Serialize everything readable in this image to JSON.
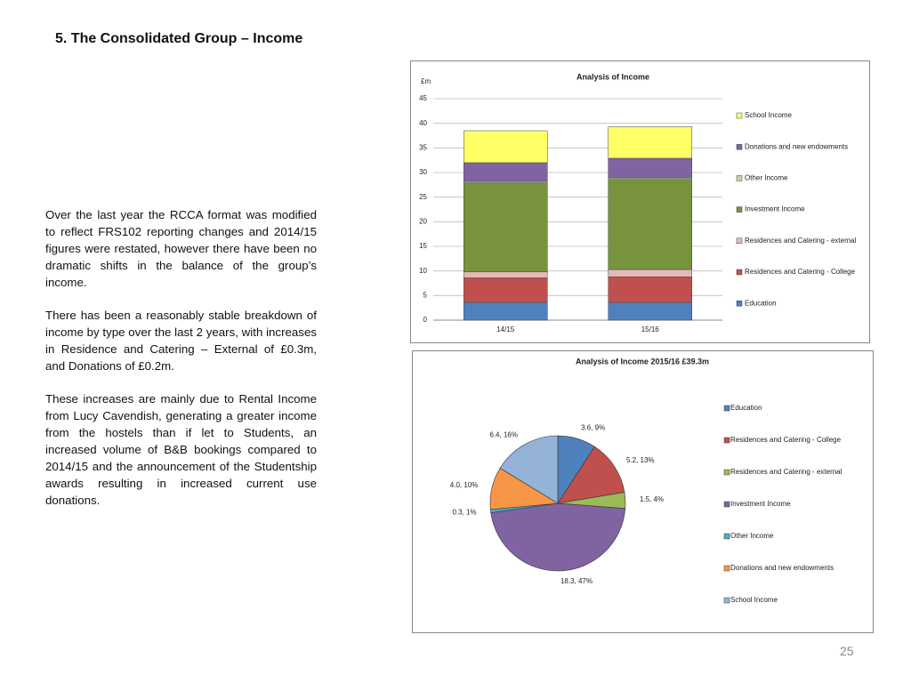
{
  "title": "5. The Consolidated Group – Income",
  "paragraphs": [
    "Over the last year the RCCA format was modified to reflect FRS102 reporting changes and 2014/15 figures were restated, however there have been no dramatic shifts in the balance of the group’s income.",
    "There has been a reasonably stable breakdown of income by type over the last 2 years, with increases in Residence and Catering – External of £0.3m, and Donations of £0.2m.",
    "These increases are mainly due to Rental Income from Lucy Cavendish, generating a greater income from the hostels than if let to Students, an increased volume of B&B bookings compared to 2014/15 and the announcement of the Studentship awards resulting in increased current use donations."
  ],
  "page_number": "25",
  "chart_data": [
    {
      "type": "bar",
      "stacked": true,
      "title": "Analysis of Income",
      "ylabel": "£m",
      "categories": [
        "14/15",
        "15/16"
      ],
      "series": [
        {
          "name": "Education",
          "color": "#4f81bd",
          "values": [
            3.6,
            3.6
          ]
        },
        {
          "name": "Residences and Catering - College",
          "color": "#c0504d",
          "values": [
            5.0,
            5.2
          ]
        },
        {
          "name": "Residences and Catering - external",
          "color": "#e6b9b8",
          "values": [
            1.2,
            1.5
          ]
        },
        {
          "name": "Investment Income",
          "color": "#77933c",
          "values": [
            18.1,
            18.3
          ]
        },
        {
          "name": "Other Income",
          "color": "#c3d69b",
          "values": [
            0.3,
            0.3
          ]
        },
        {
          "name": "Donations and new endowments",
          "color": "#8064a2",
          "values": [
            3.8,
            4.0
          ]
        },
        {
          "name": "School Income",
          "color": "#ffff66",
          "values": [
            6.5,
            6.4
          ]
        }
      ],
      "ylim": [
        0,
        45
      ],
      "yticks": [
        0,
        5,
        10,
        15,
        20,
        25,
        30,
        35,
        40,
        45
      ],
      "grid": true,
      "legend": "right"
    },
    {
      "type": "pie",
      "title": "Analysis of Income 2015/16 £39.3m",
      "categories": [
        "Education",
        "Residences and Catering - College",
        "Residences and Catering - external",
        "Investment Income",
        "Other Income",
        "Donations and new endowments",
        "School Income"
      ],
      "values": [
        3.6,
        5.2,
        1.5,
        18.3,
        0.3,
        4.0,
        6.4
      ],
      "value_labels": [
        "3.6, 9%",
        "5.2, 13%",
        "1.5, 4%",
        "18.3, 47%",
        "0.3, 1%",
        "4.0, 10%",
        "6.4, 16%"
      ],
      "colors": [
        "#4f81bd",
        "#c0504d",
        "#9bbb59",
        "#8064a2",
        "#4bacc6",
        "#f79646",
        "#95b3d7"
      ],
      "legend": "right"
    }
  ]
}
